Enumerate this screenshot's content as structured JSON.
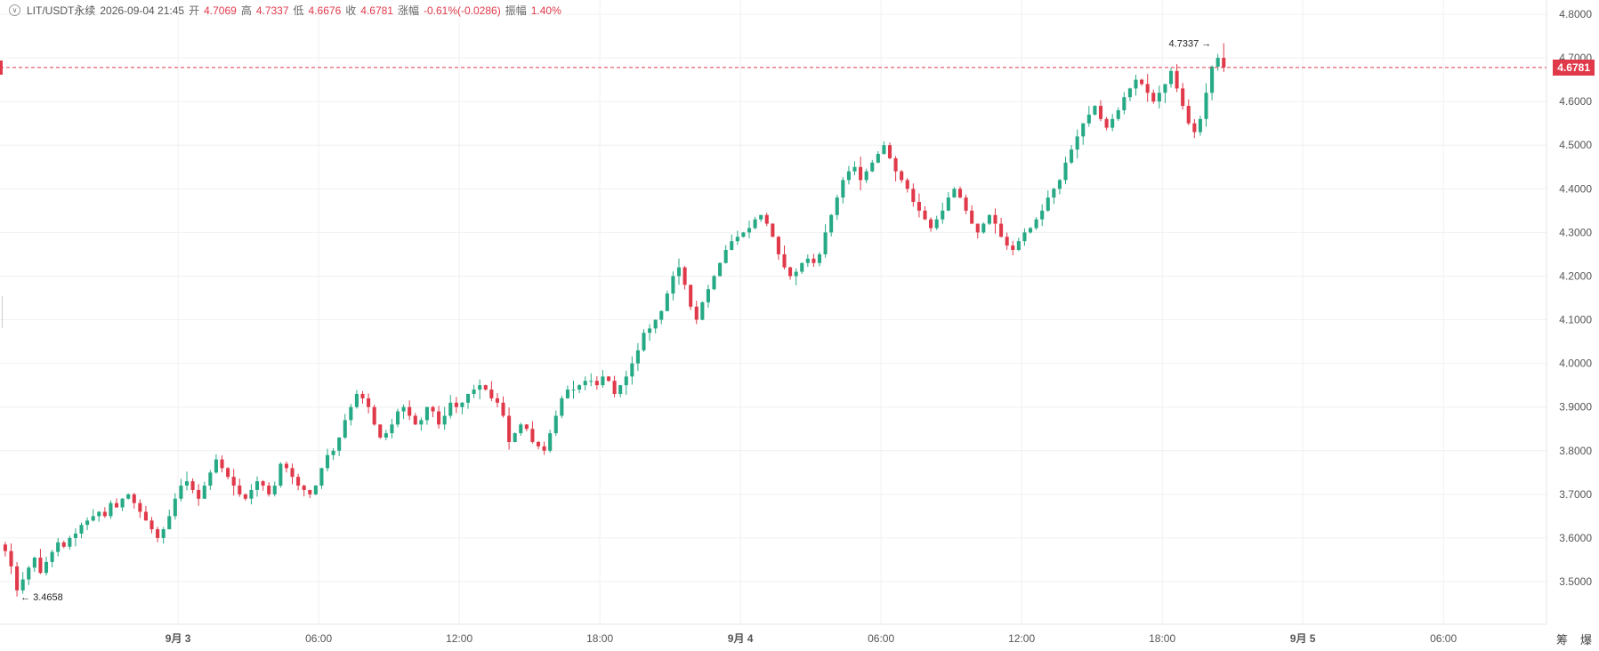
{
  "header": {
    "symbol": "LIT/USDT永续",
    "datetime": "2026-09-04 21:45",
    "open_label": "开",
    "open": "4.7069",
    "high_label": "高",
    "high": "4.7337",
    "low_label": "低",
    "low": "4.6676",
    "close_label": "收",
    "close": "4.6781",
    "change_label": "涨幅",
    "change": "-0.61%(-0.0286)",
    "amplitude_label": "振幅",
    "amplitude": "1.40%"
  },
  "current_price": "4.6781",
  "tools": {
    "left": "筹",
    "right": "爆"
  },
  "colors": {
    "up": "#26a985",
    "down": "#e0394a",
    "grid": "#f0f0f0",
    "axis_text": "#555555"
  },
  "chart_data": {
    "type": "candlestick",
    "y_ticks": [
      "4.8000",
      "4.7000",
      "4.6000",
      "4.5000",
      "4.4000",
      "4.3000",
      "4.2000",
      "4.1000",
      "4.0000",
      "3.9000",
      "3.8000",
      "3.7000",
      "3.6000",
      "3.5000"
    ],
    "ylim": [
      3.43,
      4.82
    ],
    "x_ticks": [
      {
        "t": 24,
        "label": "9月 3"
      },
      {
        "t": 30,
        "label": "06:00"
      },
      {
        "t": 36,
        "label": "12:00"
      },
      {
        "t": 42,
        "label": "18:00"
      },
      {
        "t": 48,
        "label": "9月 4"
      },
      {
        "t": 54,
        "label": "06:00"
      },
      {
        "t": 60,
        "label": "12:00"
      },
      {
        "t": 66,
        "label": "18:00"
      },
      {
        "t": 72,
        "label": "9月 5"
      },
      {
        "t": 78,
        "label": "06:00"
      }
    ],
    "x_start_hours": 16.4,
    "x_end_hours": 82.4,
    "x_unit": "hours since 9月 2 00:00",
    "high_marker": {
      "value": "4.7337"
    },
    "low_marker": {
      "value": "3.4658"
    },
    "interval_hours": 0.25,
    "closes": [
      3.57,
      3.535,
      3.48,
      3.505,
      3.532,
      3.555,
      3.52,
      3.545,
      3.568,
      3.59,
      3.58,
      3.6,
      3.61,
      3.63,
      3.64,
      3.65,
      3.66,
      3.65,
      3.68,
      3.67,
      3.69,
      3.7,
      3.68,
      3.66,
      3.64,
      3.62,
      3.6,
      3.62,
      3.65,
      3.69,
      3.72,
      3.73,
      3.71,
      3.69,
      3.72,
      3.75,
      3.78,
      3.76,
      3.74,
      3.72,
      3.7,
      3.69,
      3.71,
      3.73,
      3.72,
      3.7,
      3.72,
      3.77,
      3.76,
      3.74,
      3.72,
      3.71,
      3.7,
      3.72,
      3.76,
      3.79,
      3.8,
      3.83,
      3.87,
      3.9,
      3.93,
      3.92,
      3.9,
      3.86,
      3.83,
      3.84,
      3.86,
      3.89,
      3.9,
      3.88,
      3.86,
      3.87,
      3.9,
      3.89,
      3.86,
      3.88,
      3.91,
      3.9,
      3.91,
      3.93,
      3.94,
      3.95,
      3.94,
      3.92,
      3.91,
      3.88,
      3.82,
      3.84,
      3.86,
      3.85,
      3.82,
      3.81,
      3.8,
      3.84,
      3.88,
      3.92,
      3.94,
      3.94,
      3.95,
      3.96,
      3.96,
      3.95,
      3.97,
      3.96,
      3.93,
      3.95,
      3.97,
      4.0,
      4.03,
      4.07,
      4.08,
      4.1,
      4.12,
      4.16,
      4.2,
      4.22,
      4.18,
      4.13,
      4.1,
      4.14,
      4.17,
      4.2,
      4.23,
      4.26,
      4.28,
      4.29,
      4.3,
      4.31,
      4.33,
      4.34,
      4.32,
      4.29,
      4.25,
      4.22,
      4.2,
      4.21,
      4.23,
      4.24,
      4.23,
      4.25,
      4.3,
      4.34,
      4.38,
      4.42,
      4.44,
      4.45,
      4.42,
      4.44,
      4.46,
      4.48,
      4.5,
      4.47,
      4.44,
      4.42,
      4.4,
      4.37,
      4.35,
      4.33,
      4.31,
      4.33,
      4.35,
      4.38,
      4.4,
      4.38,
      4.35,
      4.32,
      4.3,
      4.32,
      4.34,
      4.32,
      4.29,
      4.27,
      4.26,
      4.28,
      4.3,
      4.31,
      4.33,
      4.35,
      4.38,
      4.4,
      4.42,
      4.46,
      4.49,
      4.52,
      4.55,
      4.57,
      4.59,
      4.56,
      4.54,
      4.56,
      4.58,
      4.61,
      4.63,
      4.65,
      4.64,
      4.62,
      4.6,
      4.62,
      4.64,
      4.67,
      4.63,
      4.59,
      4.55,
      4.53,
      4.56,
      4.62,
      4.68,
      4.7,
      4.6781
    ]
  }
}
